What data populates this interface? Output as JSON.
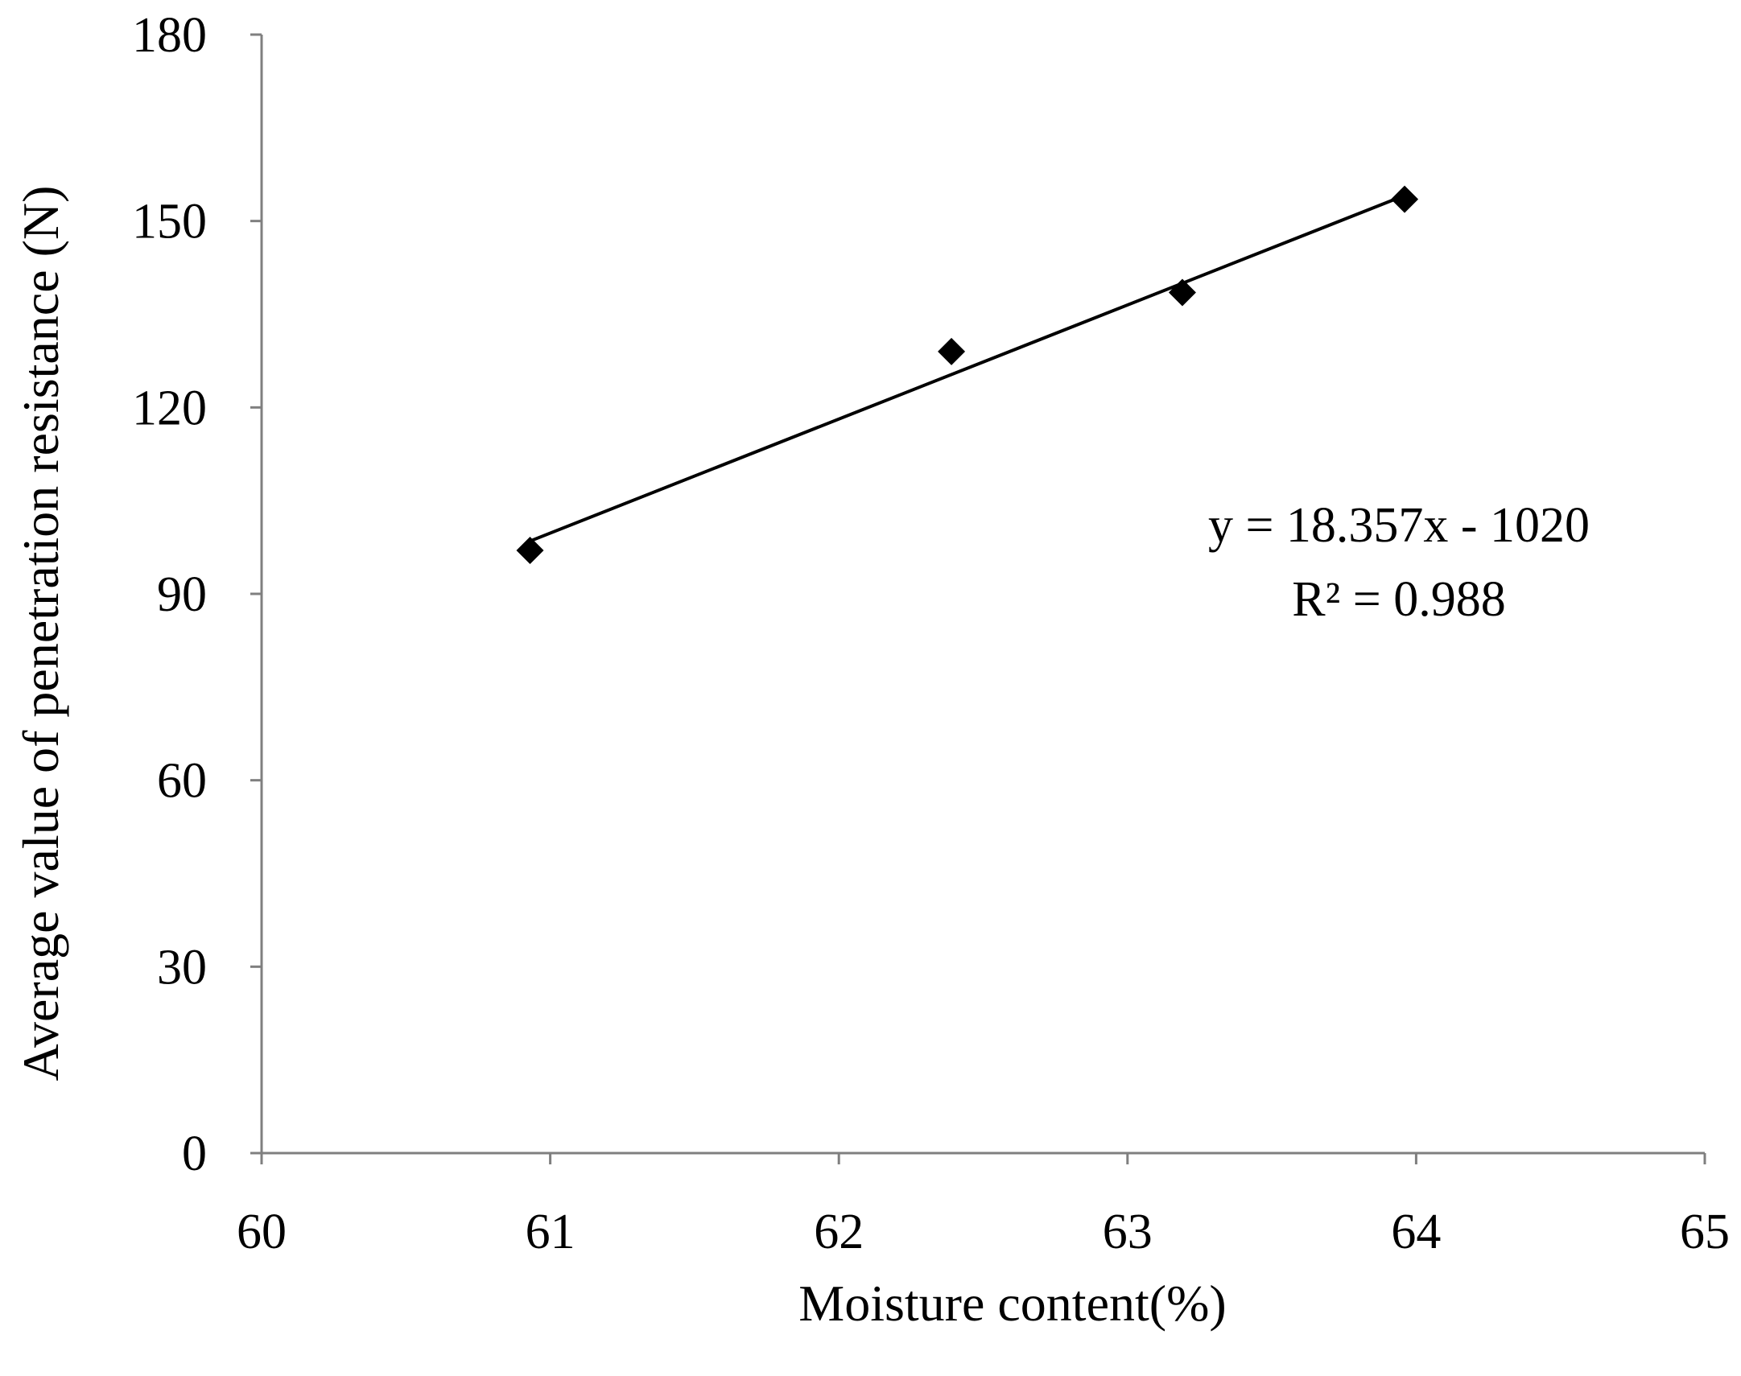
{
  "chart_data": {
    "type": "scatter",
    "xlabel": "Moisture content(%)",
    "ylabel": "Average value of penetration resistance (N)",
    "xlim": [
      60,
      65
    ],
    "ylim": [
      0,
      180
    ],
    "x_ticks": [
      "60",
      "61",
      "62",
      "63",
      "64",
      "65"
    ],
    "y_ticks": [
      "0",
      "30",
      "60",
      "90",
      "120",
      "150",
      "180"
    ],
    "series": [
      {
        "marker": "diamond",
        "color": "#000000",
        "points": [
          {
            "x": 60.93,
            "y": 97
          },
          {
            "x": 62.39,
            "y": 129
          },
          {
            "x": 63.19,
            "y": 138.5
          },
          {
            "x": 63.96,
            "y": 153.5
          }
        ]
      }
    ],
    "trendline": {
      "type": "linear",
      "slope": 18.357,
      "intercept": -1020,
      "x_range": [
        60.93,
        63.96
      ],
      "color": "#000000"
    },
    "annotations": [
      "y = 18.357x - 1020",
      "R² = 0.988"
    ],
    "axis_color": "#7f7f7f",
    "grid": false,
    "legend": "none"
  }
}
